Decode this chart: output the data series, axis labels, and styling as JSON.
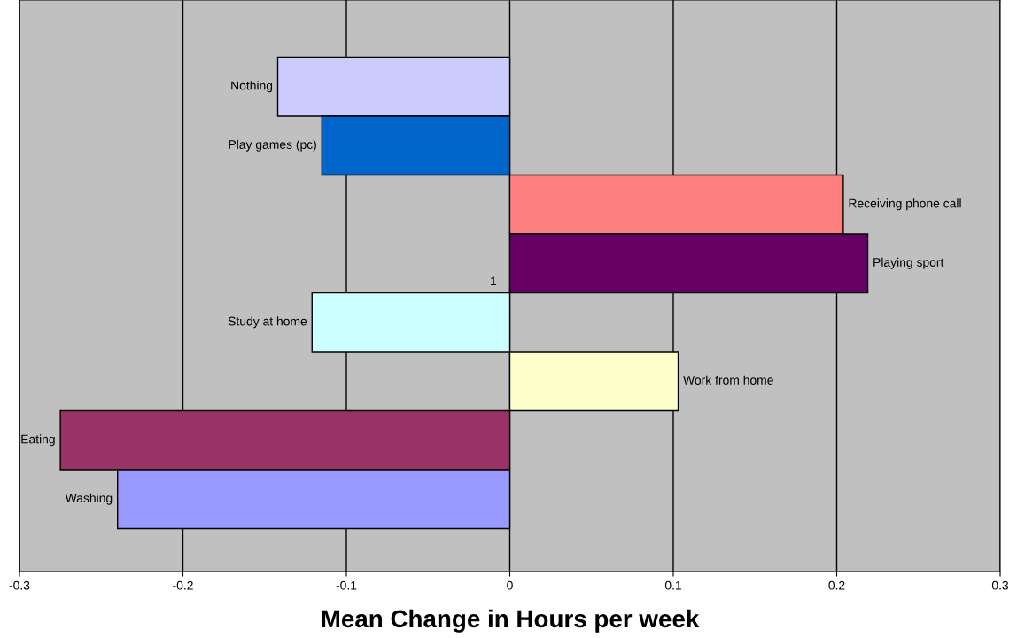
{
  "chart_data": {
    "type": "bar",
    "orientation": "horizontal",
    "xlabel": "Mean Change in Hours per week",
    "categories": [
      "Nothing",
      "Play games (pc)",
      "Receiving phone call",
      "Playing sport",
      "Study at home",
      "Work from home",
      "Eating",
      "Washing"
    ],
    "values": [
      -0.142,
      -0.115,
      0.204,
      0.219,
      -0.121,
      0.103,
      -0.275,
      -0.24
    ],
    "colors": [
      "#ccccff",
      "#0066cc",
      "#ff8080",
      "#660066",
      "#ccffff",
      "#ffffcc",
      "#993366",
      "#9999ff"
    ],
    "xlim": [
      -0.3,
      0.3
    ],
    "xticks": [
      -0.3,
      -0.2,
      -0.1,
      0,
      0.1,
      0.2,
      0.3
    ],
    "grid": "x",
    "annotations": [
      "1"
    ]
  }
}
